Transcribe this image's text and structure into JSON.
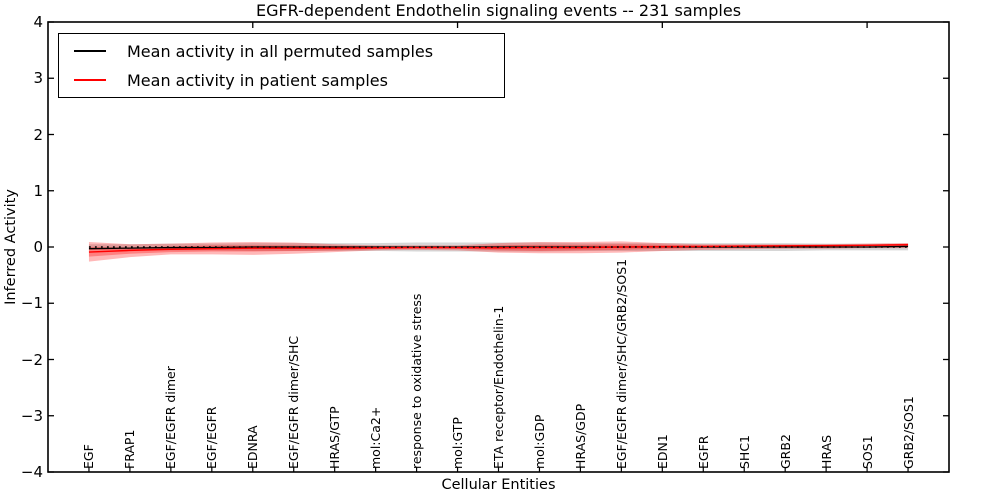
{
  "title": "EGFR-dependent Endothelin signaling events -- 231 samples",
  "legend": {
    "items": [
      {
        "label": "Mean activity in all permuted samples",
        "color": "#000000"
      },
      {
        "label": "Mean activity in patient samples",
        "color": "#ff0000"
      }
    ]
  },
  "axes": {
    "xlabel": "Cellular Entities",
    "ylabel": "Inferred Activity",
    "ytick_labels": [
      "4",
      "3",
      "2",
      "1",
      "0",
      "−1",
      "−2",
      "−3",
      "−4"
    ],
    "ytick_values": [
      4,
      3,
      2,
      1,
      0,
      -1,
      -2,
      -3,
      -4
    ]
  },
  "chart_data": {
    "type": "line",
    "title": "EGFR-dependent Endothelin signaling events -- 231 samples",
    "xlabel": "Cellular Entities",
    "ylabel": "Inferred Activity",
    "ylim": [
      -4,
      4
    ],
    "grid": false,
    "legend_position": "upper left",
    "sample_count": "231 samples",
    "categories": [
      "EGF",
      "FRAP1",
      "EGF/EGFR dimer",
      "EGF/EGFR",
      "EDNRA",
      "EGF/EGFR dimer/SHC",
      "HRAS/GTP",
      "mol:Ca2+",
      "response to oxidative stress",
      "mol:GTP",
      "ETA receptor/Endothelin-1",
      "mol:GDP",
      "HRAS/GDP",
      "EGF/EGFR dimer/SHC/GRB2/SOS1",
      "EDN1",
      "EGFR",
      "SHC1",
      "GRB2",
      "HRAS",
      "SOS1",
      "GRB2/SOS1"
    ],
    "series": [
      {
        "name": "Mean activity in all permuted samples",
        "color": "#000000",
        "style": "solid",
        "values": [
          -0.03,
          -0.02,
          -0.01,
          -0.01,
          0,
          0,
          0,
          0,
          0,
          0,
          0,
          0,
          0,
          0,
          0,
          0,
          0,
          0,
          0,
          0,
          0.01
        ]
      },
      {
        "name": "Mean activity in patient samples",
        "color": "#ff0000",
        "style": "solid",
        "values": [
          -0.09,
          -0.06,
          -0.04,
          -0.03,
          -0.02,
          -0.02,
          -0.02,
          -0.015,
          -0.01,
          -0.01,
          -0.015,
          -0.01,
          -0.01,
          0,
          0.005,
          0.01,
          0.015,
          0.02,
          0.025,
          0.03,
          0.04
        ]
      }
    ],
    "zero_line": {
      "y": 0,
      "style": "dotted",
      "color": "#000000"
    },
    "bands": [
      {
        "name": "permuted-samples-range",
        "color": "rgba(0,0,0,0.16)",
        "upper": [
          0.05,
          0.05,
          0.06,
          0.06,
          0.07,
          0.07,
          0.07,
          0.07,
          0.08,
          0.08,
          0.08,
          0.08,
          0.07,
          0.07,
          0.07,
          0.07,
          0.07,
          0.07,
          0.06,
          0.06,
          0.06
        ],
        "lower": [
          -0.05,
          -0.05,
          -0.06,
          -0.06,
          -0.07,
          -0.07,
          -0.07,
          -0.07,
          -0.08,
          -0.08,
          -0.08,
          -0.08,
          -0.07,
          -0.07,
          -0.07,
          -0.07,
          -0.07,
          -0.07,
          -0.06,
          -0.06,
          -0.06
        ]
      },
      {
        "name": "patient-samples-range-outer",
        "color": "rgba(255,0,0,0.28)",
        "upper": [
          0.09,
          0.05,
          0.06,
          0.08,
          0.09,
          0.08,
          0.05,
          0.03,
          0.03,
          0.03,
          0.07,
          0.09,
          0.09,
          0.1,
          0.07,
          0.05,
          0.05,
          0.05,
          0.05,
          0.06,
          0.07
        ],
        "lower": [
          -0.26,
          -0.18,
          -0.13,
          -0.13,
          -0.14,
          -0.12,
          -0.09,
          -0.06,
          -0.05,
          -0.06,
          -0.1,
          -0.11,
          -0.11,
          -0.1,
          -0.07,
          -0.05,
          -0.04,
          -0.03,
          -0.03,
          -0.02,
          -0.02
        ]
      },
      {
        "name": "patient-samples-range-inner",
        "color": "rgba(255,0,0,0.3)",
        "upper": [
          0.0,
          -0.01,
          0.01,
          0.03,
          0.03,
          0.03,
          0.02,
          0.01,
          0.0,
          0.01,
          0.03,
          0.04,
          0.04,
          0.05,
          0.04,
          0.03,
          0.03,
          0.03,
          0.03,
          0.04,
          0.06
        ],
        "lower": [
          -0.17,
          -0.12,
          -0.09,
          -0.08,
          -0.08,
          -0.07,
          -0.06,
          -0.04,
          -0.03,
          -0.03,
          -0.06,
          -0.07,
          -0.06,
          -0.05,
          -0.03,
          -0.02,
          -0.01,
          0.0,
          0.01,
          0.015,
          0.025
        ]
      }
    ],
    "top_axis_tick_positions": [
      5,
      10,
      15,
      20
    ]
  }
}
